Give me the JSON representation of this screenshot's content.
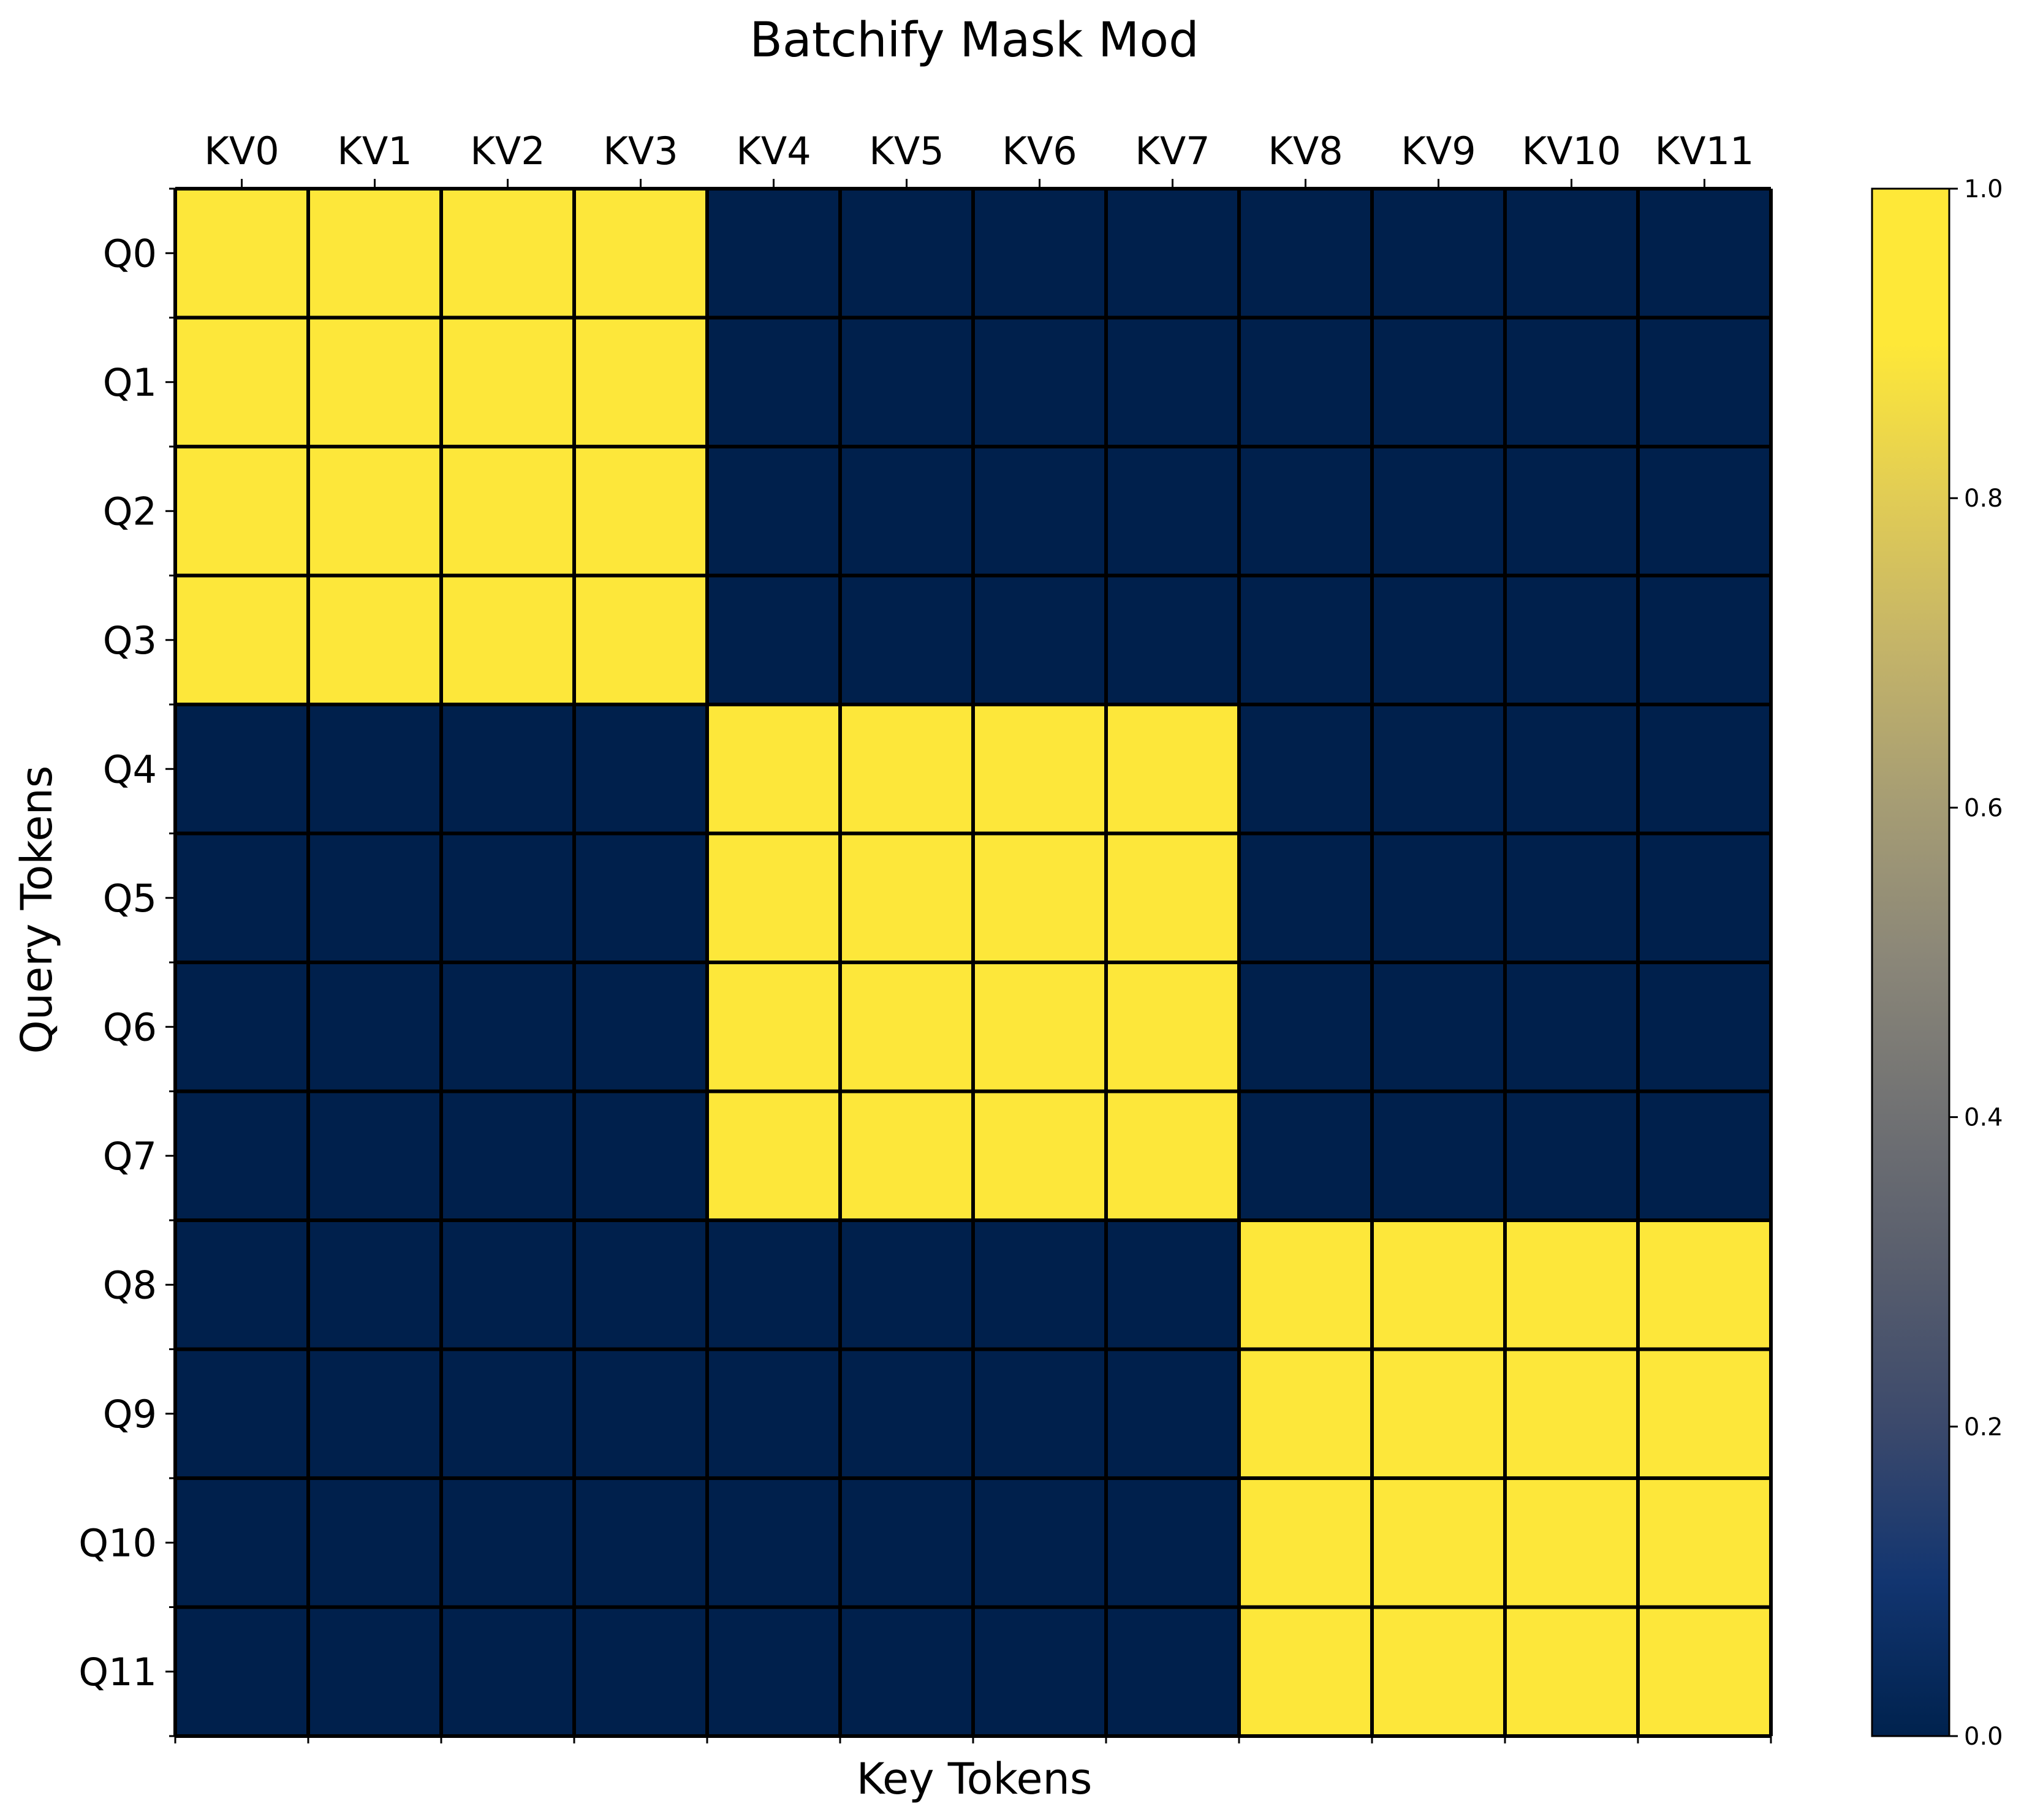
{
  "chart_data": {
    "type": "heatmap",
    "title": "Batchify Mask Mod",
    "xlabel": "Key Tokens",
    "ylabel": "Query Tokens",
    "x_categories": [
      "KV0",
      "KV1",
      "KV2",
      "KV3",
      "KV4",
      "KV5",
      "KV6",
      "KV7",
      "KV8",
      "KV9",
      "KV10",
      "KV11"
    ],
    "y_categories": [
      "Q0",
      "Q1",
      "Q2",
      "Q3",
      "Q4",
      "Q5",
      "Q6",
      "Q7",
      "Q8",
      "Q9",
      "Q10",
      "Q11"
    ],
    "x_tick_position": "top",
    "grid": true,
    "colormap": "cividis",
    "colors": {
      "low": "#00204c",
      "high": "#fde73a",
      "grid_line": "#000000"
    },
    "values": [
      [
        1,
        1,
        1,
        1,
        0,
        0,
        0,
        0,
        0,
        0,
        0,
        0
      ],
      [
        1,
        1,
        1,
        1,
        0,
        0,
        0,
        0,
        0,
        0,
        0,
        0
      ],
      [
        1,
        1,
        1,
        1,
        0,
        0,
        0,
        0,
        0,
        0,
        0,
        0
      ],
      [
        1,
        1,
        1,
        1,
        0,
        0,
        0,
        0,
        0,
        0,
        0,
        0
      ],
      [
        0,
        0,
        0,
        0,
        1,
        1,
        1,
        1,
        0,
        0,
        0,
        0
      ],
      [
        0,
        0,
        0,
        0,
        1,
        1,
        1,
        1,
        0,
        0,
        0,
        0
      ],
      [
        0,
        0,
        0,
        0,
        1,
        1,
        1,
        1,
        0,
        0,
        0,
        0
      ],
      [
        0,
        0,
        0,
        0,
        1,
        1,
        1,
        1,
        0,
        0,
        0,
        0
      ],
      [
        0,
        0,
        0,
        0,
        0,
        0,
        0,
        0,
        1,
        1,
        1,
        1
      ],
      [
        0,
        0,
        0,
        0,
        0,
        0,
        0,
        0,
        1,
        1,
        1,
        1
      ],
      [
        0,
        0,
        0,
        0,
        0,
        0,
        0,
        0,
        1,
        1,
        1,
        1
      ],
      [
        0,
        0,
        0,
        0,
        0,
        0,
        0,
        0,
        1,
        1,
        1,
        1
      ]
    ],
    "colorbar": {
      "range": [
        0,
        1
      ],
      "ticks": [
        "0.0",
        "0.2",
        "0.4",
        "0.6",
        "0.8",
        "1.0"
      ],
      "placement": "right"
    }
  }
}
